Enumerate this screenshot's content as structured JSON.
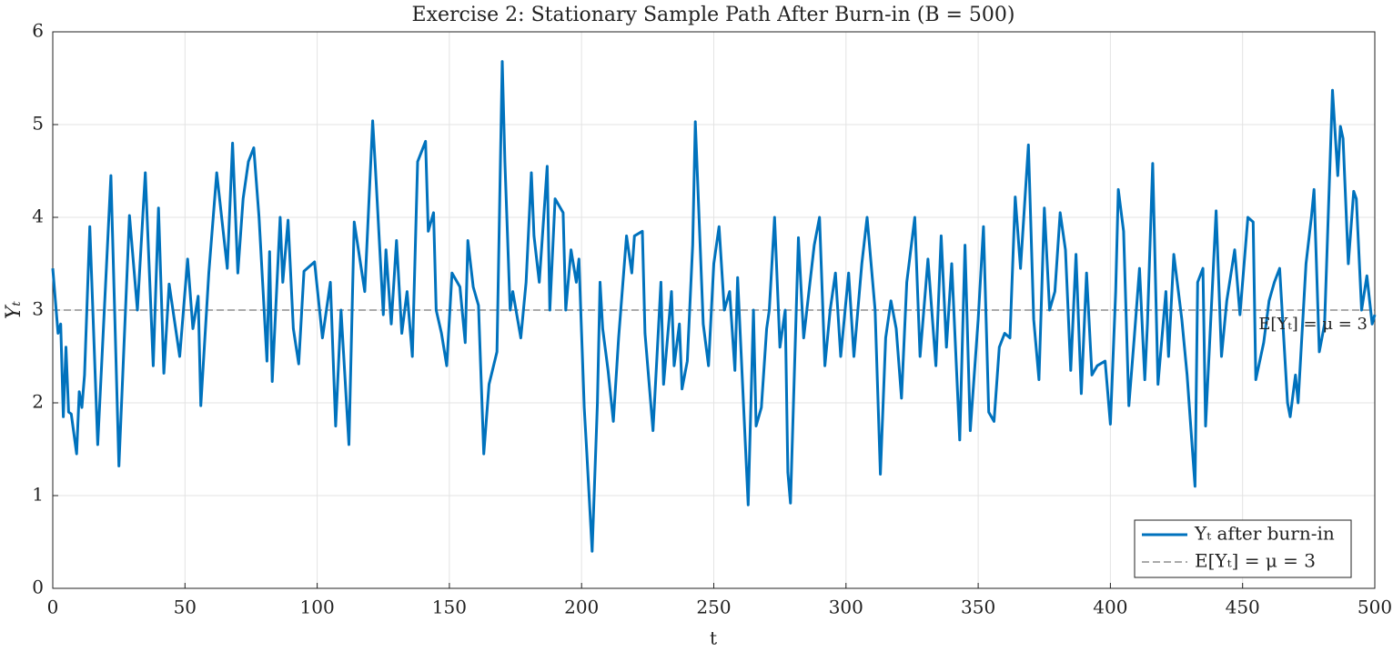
{
  "chart_data": {
    "type": "line",
    "title": "Exercise 2: Stationary Sample Path After Burn-in (B = 500)",
    "xlabel": "t",
    "ylabel": "Yₜ",
    "xlim": [
      0,
      500
    ],
    "xticks": [
      0,
      50,
      100,
      150,
      200,
      250,
      300,
      350,
      400,
      450,
      500
    ],
    "ylim": [
      0,
      6
    ],
    "yticks": [
      0,
      1,
      2,
      3,
      4,
      5,
      6
    ],
    "grid": true,
    "legend": "lower right",
    "x": [
      0,
      2,
      3,
      4,
      5,
      6,
      7,
      9,
      10,
      11,
      12,
      14,
      17,
      22,
      25,
      29,
      32,
      35,
      38,
      40,
      42,
      44,
      48,
      51,
      53,
      55,
      56,
      59,
      62,
      66,
      68,
      70,
      72,
      74,
      76,
      78,
      81,
      82,
      83,
      86,
      87,
      89,
      91,
      93,
      95,
      99,
      102,
      105,
      107,
      109,
      112,
      114,
      118,
      121,
      122,
      125,
      126,
      128,
      130,
      132,
      134,
      136,
      138,
      141,
      142,
      144,
      145,
      147,
      149,
      151,
      154,
      156,
      157,
      159,
      161,
      163,
      165,
      168,
      170,
      171,
      173,
      174,
      177,
      179,
      181,
      182,
      184,
      187,
      188,
      190,
      193,
      194,
      196,
      198,
      199,
      201,
      202,
      204,
      206,
      207,
      208,
      210,
      212,
      214,
      217,
      219,
      220,
      223,
      224,
      227,
      230,
      231,
      234,
      235,
      237,
      238,
      240,
      242,
      243,
      246,
      248,
      250,
      252,
      254,
      256,
      258,
      259,
      263,
      265,
      266,
      268,
      270,
      271,
      273,
      275,
      277,
      278,
      279,
      282,
      284,
      286,
      288,
      290,
      292,
      294,
      296,
      298,
      301,
      303,
      306,
      308,
      311,
      313,
      315,
      317,
      319,
      321,
      323,
      326,
      328,
      331,
      334,
      336,
      338,
      340,
      343,
      345,
      347,
      350,
      352,
      354,
      356,
      358,
      360,
      362,
      364,
      366,
      369,
      371,
      373,
      375,
      377,
      379,
      381,
      383,
      385,
      387,
      389,
      391,
      393,
      395,
      398,
      400,
      402,
      403,
      405,
      407,
      409,
      411,
      413,
      414,
      416,
      418,
      421,
      422,
      424,
      427,
      429,
      432,
      433,
      435,
      436,
      440,
      442,
      444,
      447,
      449,
      452,
      454,
      455,
      458,
      460,
      462,
      464,
      467,
      468,
      470,
      471,
      474,
      476,
      477,
      479,
      481,
      484,
      486,
      487,
      488,
      490,
      492,
      493,
      495,
      497,
      499,
      500
    ],
    "series": [
      {
        "name": "Yₜ after burn-in",
        "color": "#0072bd",
        "values": [
          3.45,
          2.75,
          2.85,
          1.85,
          2.6,
          1.9,
          1.88,
          1.45,
          2.12,
          1.95,
          2.3,
          3.9,
          1.55,
          4.45,
          1.32,
          4.02,
          3.0,
          4.48,
          2.4,
          4.1,
          2.32,
          3.28,
          2.5,
          3.55,
          2.8,
          3.15,
          1.97,
          3.4,
          4.48,
          3.45,
          4.8,
          3.4,
          4.2,
          4.6,
          4.75,
          4.0,
          2.45,
          3.63,
          2.23,
          4.0,
          3.3,
          3.97,
          2.8,
          2.42,
          3.42,
          3.52,
          2.7,
          3.3,
          1.75,
          3.0,
          1.55,
          3.95,
          3.2,
          5.04,
          4.55,
          2.95,
          3.65,
          2.85,
          3.75,
          2.75,
          3.2,
          2.5,
          4.6,
          4.82,
          3.85,
          4.05,
          3.0,
          2.75,
          2.4,
          3.4,
          3.25,
          2.65,
          3.75,
          3.25,
          3.05,
          1.45,
          2.2,
          2.55,
          5.68,
          4.6,
          3.0,
          3.2,
          2.7,
          3.3,
          4.48,
          3.8,
          3.3,
          4.55,
          3.0,
          4.2,
          4.05,
          3.0,
          3.65,
          3.3,
          3.55,
          1.95,
          1.45,
          0.4,
          2.0,
          3.3,
          2.8,
          2.35,
          1.8,
          2.7,
          3.8,
          3.4,
          3.8,
          3.85,
          2.75,
          1.7,
          3.3,
          2.2,
          3.2,
          2.4,
          2.85,
          2.15,
          2.45,
          3.7,
          5.03,
          2.85,
          2.4,
          3.5,
          3.9,
          3.0,
          3.2,
          2.35,
          3.35,
          0.9,
          3.0,
          1.75,
          1.95,
          2.8,
          3.0,
          4.0,
          2.6,
          3.0,
          1.25,
          0.92,
          3.78,
          2.7,
          3.2,
          3.7,
          4.0,
          2.4,
          3.0,
          3.4,
          2.5,
          3.4,
          2.5,
          3.5,
          4.0,
          3.0,
          1.23,
          2.7,
          3.1,
          2.8,
          2.05,
          3.3,
          4.0,
          2.5,
          3.55,
          2.4,
          3.8,
          2.6,
          3.5,
          1.6,
          3.7,
          1.7,
          2.9,
          3.9,
          1.9,
          1.8,
          2.6,
          2.75,
          2.7,
          4.22,
          3.45,
          4.78,
          2.9,
          2.25,
          4.1,
          3.0,
          3.2,
          4.05,
          3.65,
          2.35,
          3.6,
          2.1,
          3.4,
          2.3,
          2.4,
          2.45,
          1.77,
          3.2,
          4.3,
          3.85,
          1.97,
          2.7,
          3.45,
          2.25,
          2.85,
          4.58,
          2.2,
          3.2,
          2.5,
          3.6,
          2.9,
          2.3,
          1.1,
          3.3,
          3.45,
          1.75,
          4.07,
          2.5,
          3.1,
          3.65,
          2.95,
          4.0,
          3.95,
          2.25,
          2.65,
          3.1,
          3.3,
          3.45,
          2.0,
          1.85,
          2.3,
          2.0,
          3.5,
          4.0,
          4.3,
          2.55,
          2.85,
          5.37,
          4.45,
          4.98,
          4.85,
          3.5,
          4.28,
          4.2,
          3.0,
          3.37,
          2.85,
          2.95
        ]
      }
    ],
    "hline": {
      "name": "E[Yₜ] = μ = 3",
      "value": 3,
      "color": "#555555"
    },
    "annotation": "E[Yₜ] = μ = 3"
  }
}
